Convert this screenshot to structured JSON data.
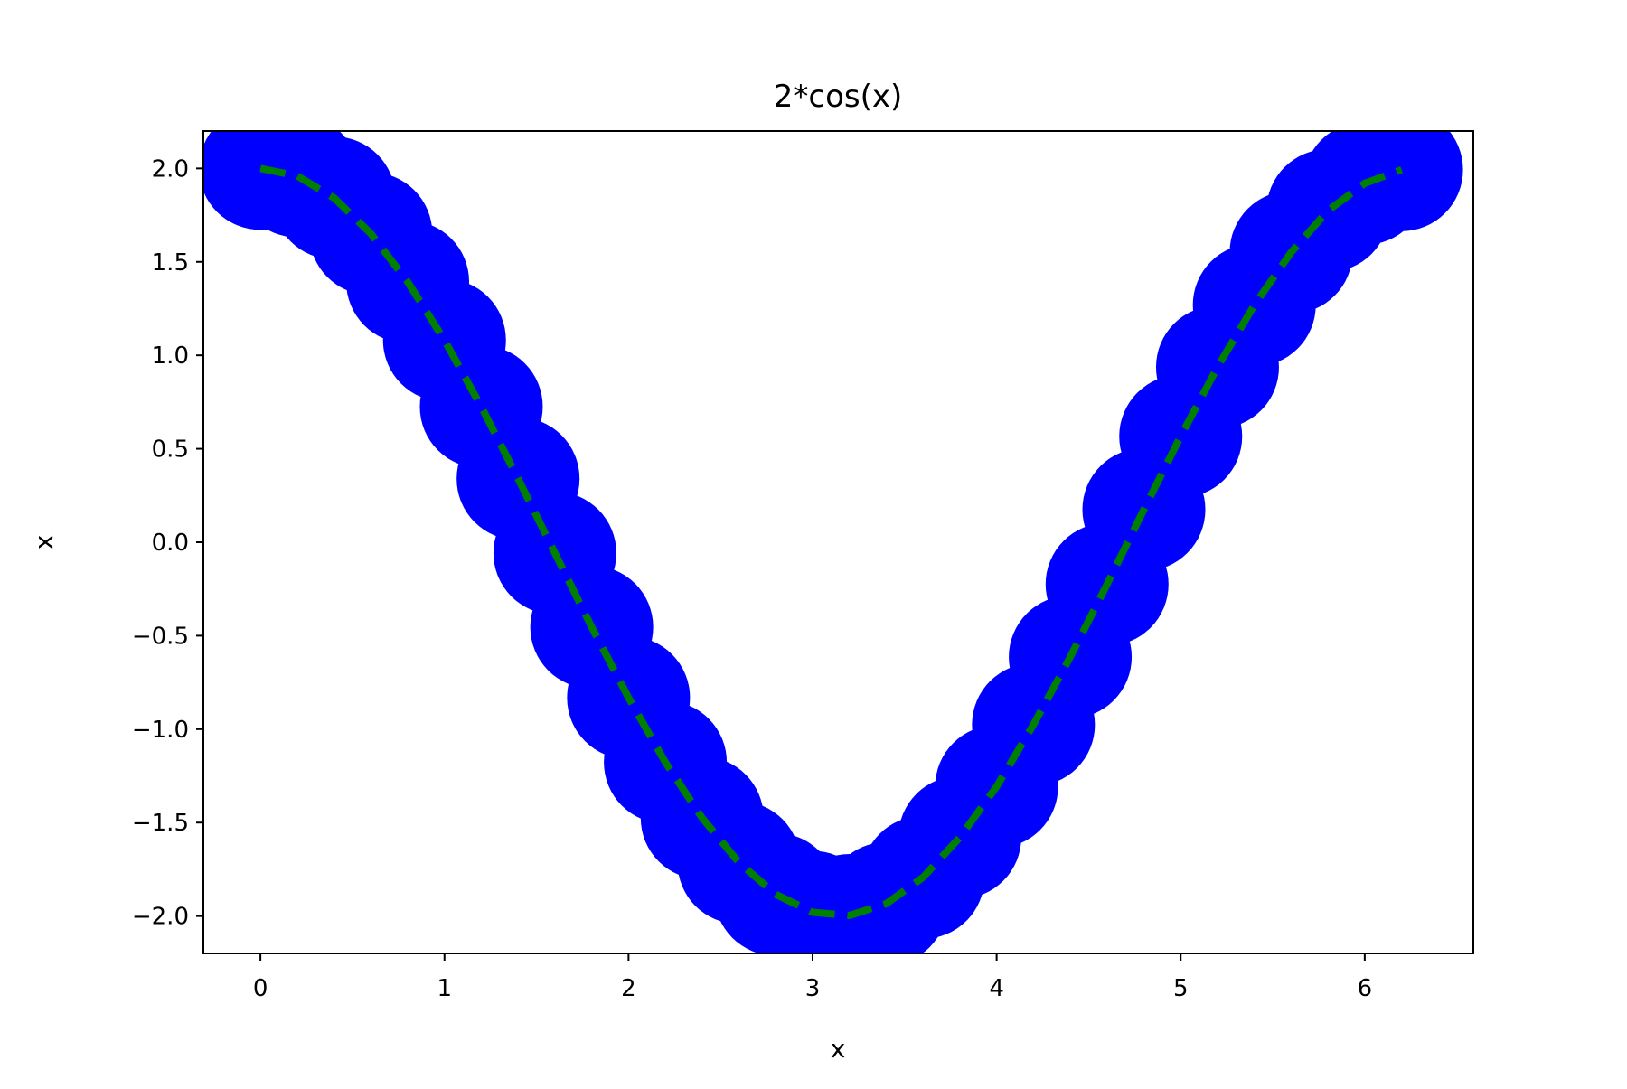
{
  "chart_data": {
    "type": "line",
    "title": "2*cos(x)",
    "xlabel": "x",
    "ylabel": "x",
    "xlim": [
      -0.31,
      6.59
    ],
    "ylim": [
      -2.2,
      2.2
    ],
    "x_ticks": [
      0,
      1,
      2,
      3,
      4,
      5,
      6
    ],
    "y_ticks": [
      2.0,
      1.5,
      1.0,
      0.5,
      0.0,
      -0.5,
      -1.0,
      -1.5,
      -2.0
    ],
    "x_tick_labels": [
      "0",
      "1",
      "2",
      "3",
      "4",
      "5",
      "6"
    ],
    "y_tick_labels": [
      "2.0",
      "1.5",
      "1.0",
      "0.5",
      "0.0",
      "−0.5",
      "−1.0",
      "−1.5",
      "−2.0"
    ],
    "grid": false,
    "x": [
      0.0,
      0.2,
      0.4,
      0.6,
      0.8,
      1.0,
      1.2,
      1.4,
      1.6,
      1.8,
      2.0,
      2.2,
      2.4,
      2.6,
      2.8,
      3.0,
      3.2,
      3.4,
      3.6,
      3.8,
      4.0,
      4.2,
      4.4,
      4.6,
      4.8,
      5.0,
      5.2,
      5.4,
      5.6,
      5.8,
      6.0,
      6.2
    ],
    "series": [
      {
        "values": [
          2.0,
          1.96,
          1.842,
          1.651,
          1.393,
          1.081,
          0.725,
          0.34,
          -0.058,
          -0.454,
          -0.832,
          -1.177,
          -1.475,
          -1.714,
          -1.884,
          -1.98,
          -1.997,
          -1.934,
          -1.793,
          -1.579,
          -1.307,
          -0.976,
          -0.614,
          -0.225,
          0.175,
          0.567,
          0.937,
          1.269,
          1.551,
          1.774,
          1.92,
          1.993
        ],
        "marker_color": "#0000ff",
        "line_color": "#008000",
        "line_style": "dashed"
      }
    ]
  }
}
